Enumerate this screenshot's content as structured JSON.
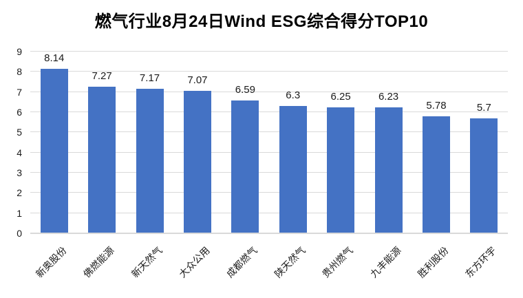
{
  "chart_data": {
    "type": "bar",
    "title": "燃气行业8月24日Wind ESG综合得分TOP10",
    "categories": [
      "新奥股份",
      "佛燃能源",
      "新天然气",
      "大众公用",
      "成都燃气",
      "陕天然气",
      "贵州燃气",
      "九丰能源",
      "胜利股份",
      "东方环宇"
    ],
    "values": [
      8.14,
      7.27,
      7.17,
      7.07,
      6.59,
      6.3,
      6.25,
      6.23,
      5.78,
      5.7
    ],
    "value_labels": [
      "8.14",
      "7.27",
      "7.17",
      "7.07",
      "6.59",
      "6.3",
      "6.25",
      "6.23",
      "5.78",
      "5.7"
    ],
    "ylim": [
      0,
      9
    ],
    "yticks": [
      0,
      1,
      2,
      3,
      4,
      5,
      6,
      7,
      8,
      9
    ],
    "grid": "horizontal",
    "legend": "none",
    "x_label_rotation_deg": 45
  },
  "colors": {
    "bar": "#4472C4",
    "gridline": "#D9D9D9",
    "axis_line": "#D9D9D9",
    "label_text": "#1a1a1a",
    "background": "#FFFFFF"
  }
}
